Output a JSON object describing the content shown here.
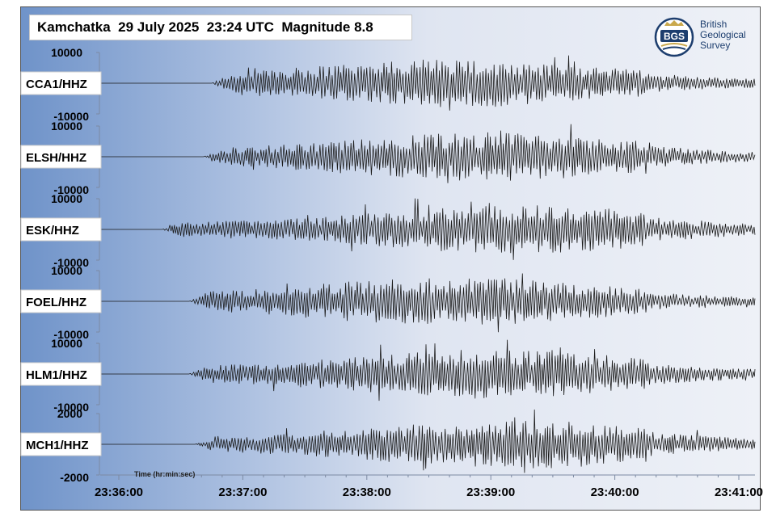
{
  "title": "Kamchatka  29 July 2025  23:24 UTC  Magnitude 8.8",
  "logo": {
    "abbrev": "BGS",
    "lines": [
      "British",
      "Geological",
      "Survey"
    ],
    "colors": {
      "navy": "#1d3e6e",
      "gold": "#c9a84c"
    }
  },
  "colors": {
    "trace": "#1a1a1a",
    "bg_left": "#6f93c9",
    "bg_right": "#eef1f7"
  },
  "chart_data": {
    "type": "line",
    "xlabel": "Time (hr:min:sec)",
    "xticks": [
      "23:36:00",
      "23:37:00",
      "23:38:00",
      "23:39:00",
      "23:40:00",
      "23:41:00"
    ],
    "xlim": [
      "23:35:50",
      "23:41:10"
    ],
    "series": [
      {
        "name": "CCA1/HHZ",
        "ylim": [
          -10000,
          10000
        ],
        "yticks": [
          "10000",
          "-10000"
        ],
        "onset": "23:36:45"
      },
      {
        "name": "ELSH/HHZ",
        "ylim": [
          -10000,
          10000
        ],
        "yticks": [
          "10000",
          "-10000"
        ],
        "onset": "23:36:41"
      },
      {
        "name": "ESK/HHZ",
        "ylim": [
          -10000,
          10000
        ],
        "yticks": [
          "10000",
          "-10000"
        ],
        "onset": "23:36:21"
      },
      {
        "name": "FOEL/HHZ",
        "ylim": [
          -10000,
          10000
        ],
        "yticks": [
          "10000",
          "-10000"
        ],
        "onset": "23:36:34"
      },
      {
        "name": "HLM1/HHZ",
        "ylim": [
          -10000,
          10000
        ],
        "yticks": [
          "10000",
          "-10000"
        ],
        "onset": "23:36:34"
      },
      {
        "name": "MCH1/HHZ",
        "ylim": [
          -2000,
          2000
        ],
        "yticks": [
          "2000",
          "-2000"
        ],
        "onset": "23:36:37"
      }
    ]
  }
}
